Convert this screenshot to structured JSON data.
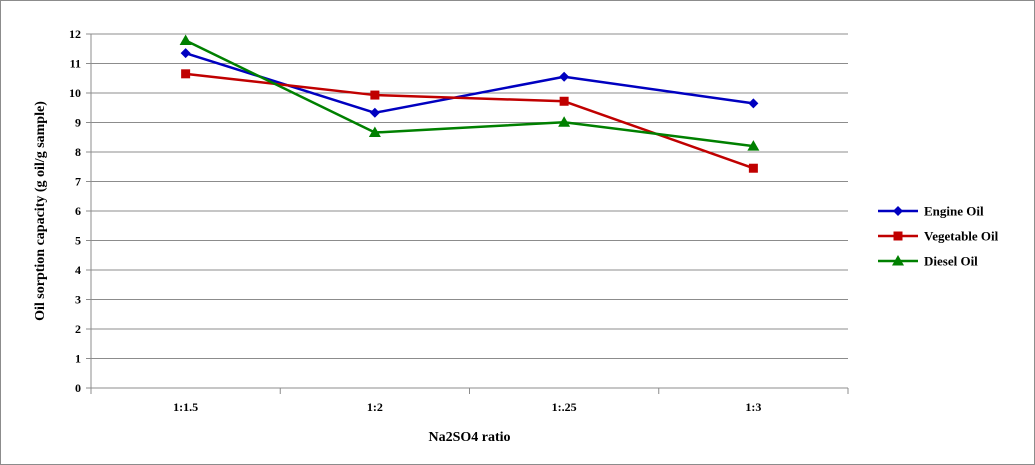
{
  "chart_data": {
    "type": "line",
    "title": "",
    "xlabel": "Na2SO4 ratio",
    "ylabel": "Oil sorption capacity (g oil/g sample)",
    "categories": [
      "1:1.5",
      "1:2",
      "1:.25",
      "1:3"
    ],
    "ylim": [
      0,
      12
    ],
    "ytick_step": 1,
    "grid": true,
    "legend_position": "right",
    "series": [
      {
        "name": "Engine Oil",
        "color": "#0000c0",
        "marker": "diamond",
        "values": [
          11.35,
          9.33,
          10.55,
          9.65
        ]
      },
      {
        "name": "Vegetable Oil",
        "color": "#c00000",
        "marker": "square",
        "values": [
          10.65,
          9.93,
          9.72,
          7.45
        ]
      },
      {
        "name": "Diesel Oil",
        "color": "#008000",
        "marker": "triangle",
        "values": [
          11.78,
          8.66,
          9.01,
          8.2
        ]
      }
    ]
  }
}
